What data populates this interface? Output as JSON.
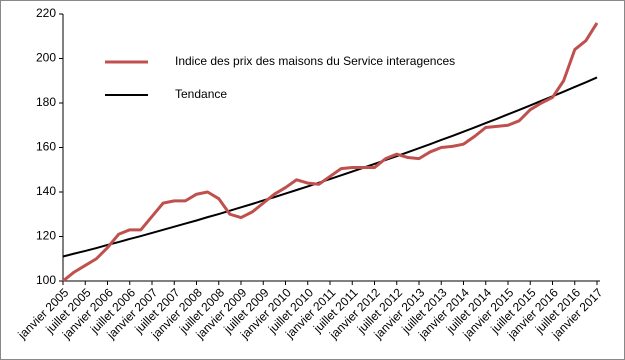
{
  "chart_data": {
    "type": "line",
    "categories": [
      "janvier 2005",
      null,
      "juillet 2005",
      null,
      "janvier 2006",
      null,
      "juillet 2006",
      null,
      "janvier 2007",
      null,
      "juillet 2007",
      null,
      "janvier 2008",
      null,
      "juillet 2008",
      null,
      "janvier 2009",
      null,
      "juillet 2009",
      null,
      "janvier 2010",
      null,
      "juillet 2010",
      null,
      "janvier 2011",
      null,
      "juillet 2011",
      null,
      "janvier 2012",
      null,
      "juillet 2012",
      null,
      "janvier 2013",
      null,
      "juillet 2013",
      null,
      "janvier 2014",
      null,
      "juillet 2014",
      null,
      "janvier 2015",
      null,
      "juillet 2015",
      null,
      "janvier 2016",
      null,
      "juillet 2016",
      null,
      "janvier 2017"
    ],
    "series": [
      {
        "name": "Indice des prix des maisons du Service interagences",
        "color": "#c0504d",
        "values": [
          100,
          104,
          107,
          110,
          115,
          121,
          123,
          123,
          129,
          135,
          136,
          136,
          139,
          140,
          137,
          130,
          128.5,
          131,
          135,
          139,
          142,
          145.5,
          144,
          143.5,
          147,
          150.5,
          151,
          151,
          151,
          155,
          157,
          155.5,
          155,
          158,
          160,
          160.5,
          161.5,
          165,
          169,
          169.5,
          170,
          172,
          177,
          180,
          182.5,
          190,
          204,
          208,
          216
        ]
      },
      {
        "name": "Tendance",
        "color": "#000000",
        "values": [
          111.0,
          112.3,
          113.5,
          114.8,
          116.2,
          117.5,
          118.9,
          120.2,
          121.6,
          123.0,
          124.4,
          125.8,
          127.2,
          128.7,
          130.1,
          131.6,
          133.1,
          134.6,
          136.2,
          137.7,
          139.3,
          140.9,
          142.5,
          144.2,
          145.8,
          147.5,
          149.2,
          150.9,
          152.6,
          154.4,
          156.1,
          157.9,
          159.7,
          161.5,
          163.4,
          165.2,
          167.1,
          169.0,
          171.0,
          172.9,
          174.9,
          176.9,
          178.9,
          181.0,
          183.0,
          185.1,
          187.2,
          189.3,
          191.5
        ]
      }
    ],
    "ylim": [
      100,
      220
    ],
    "yticks": [
      100,
      120,
      140,
      160,
      180,
      200,
      220
    ],
    "grid": false,
    "legend": "top-left"
  }
}
